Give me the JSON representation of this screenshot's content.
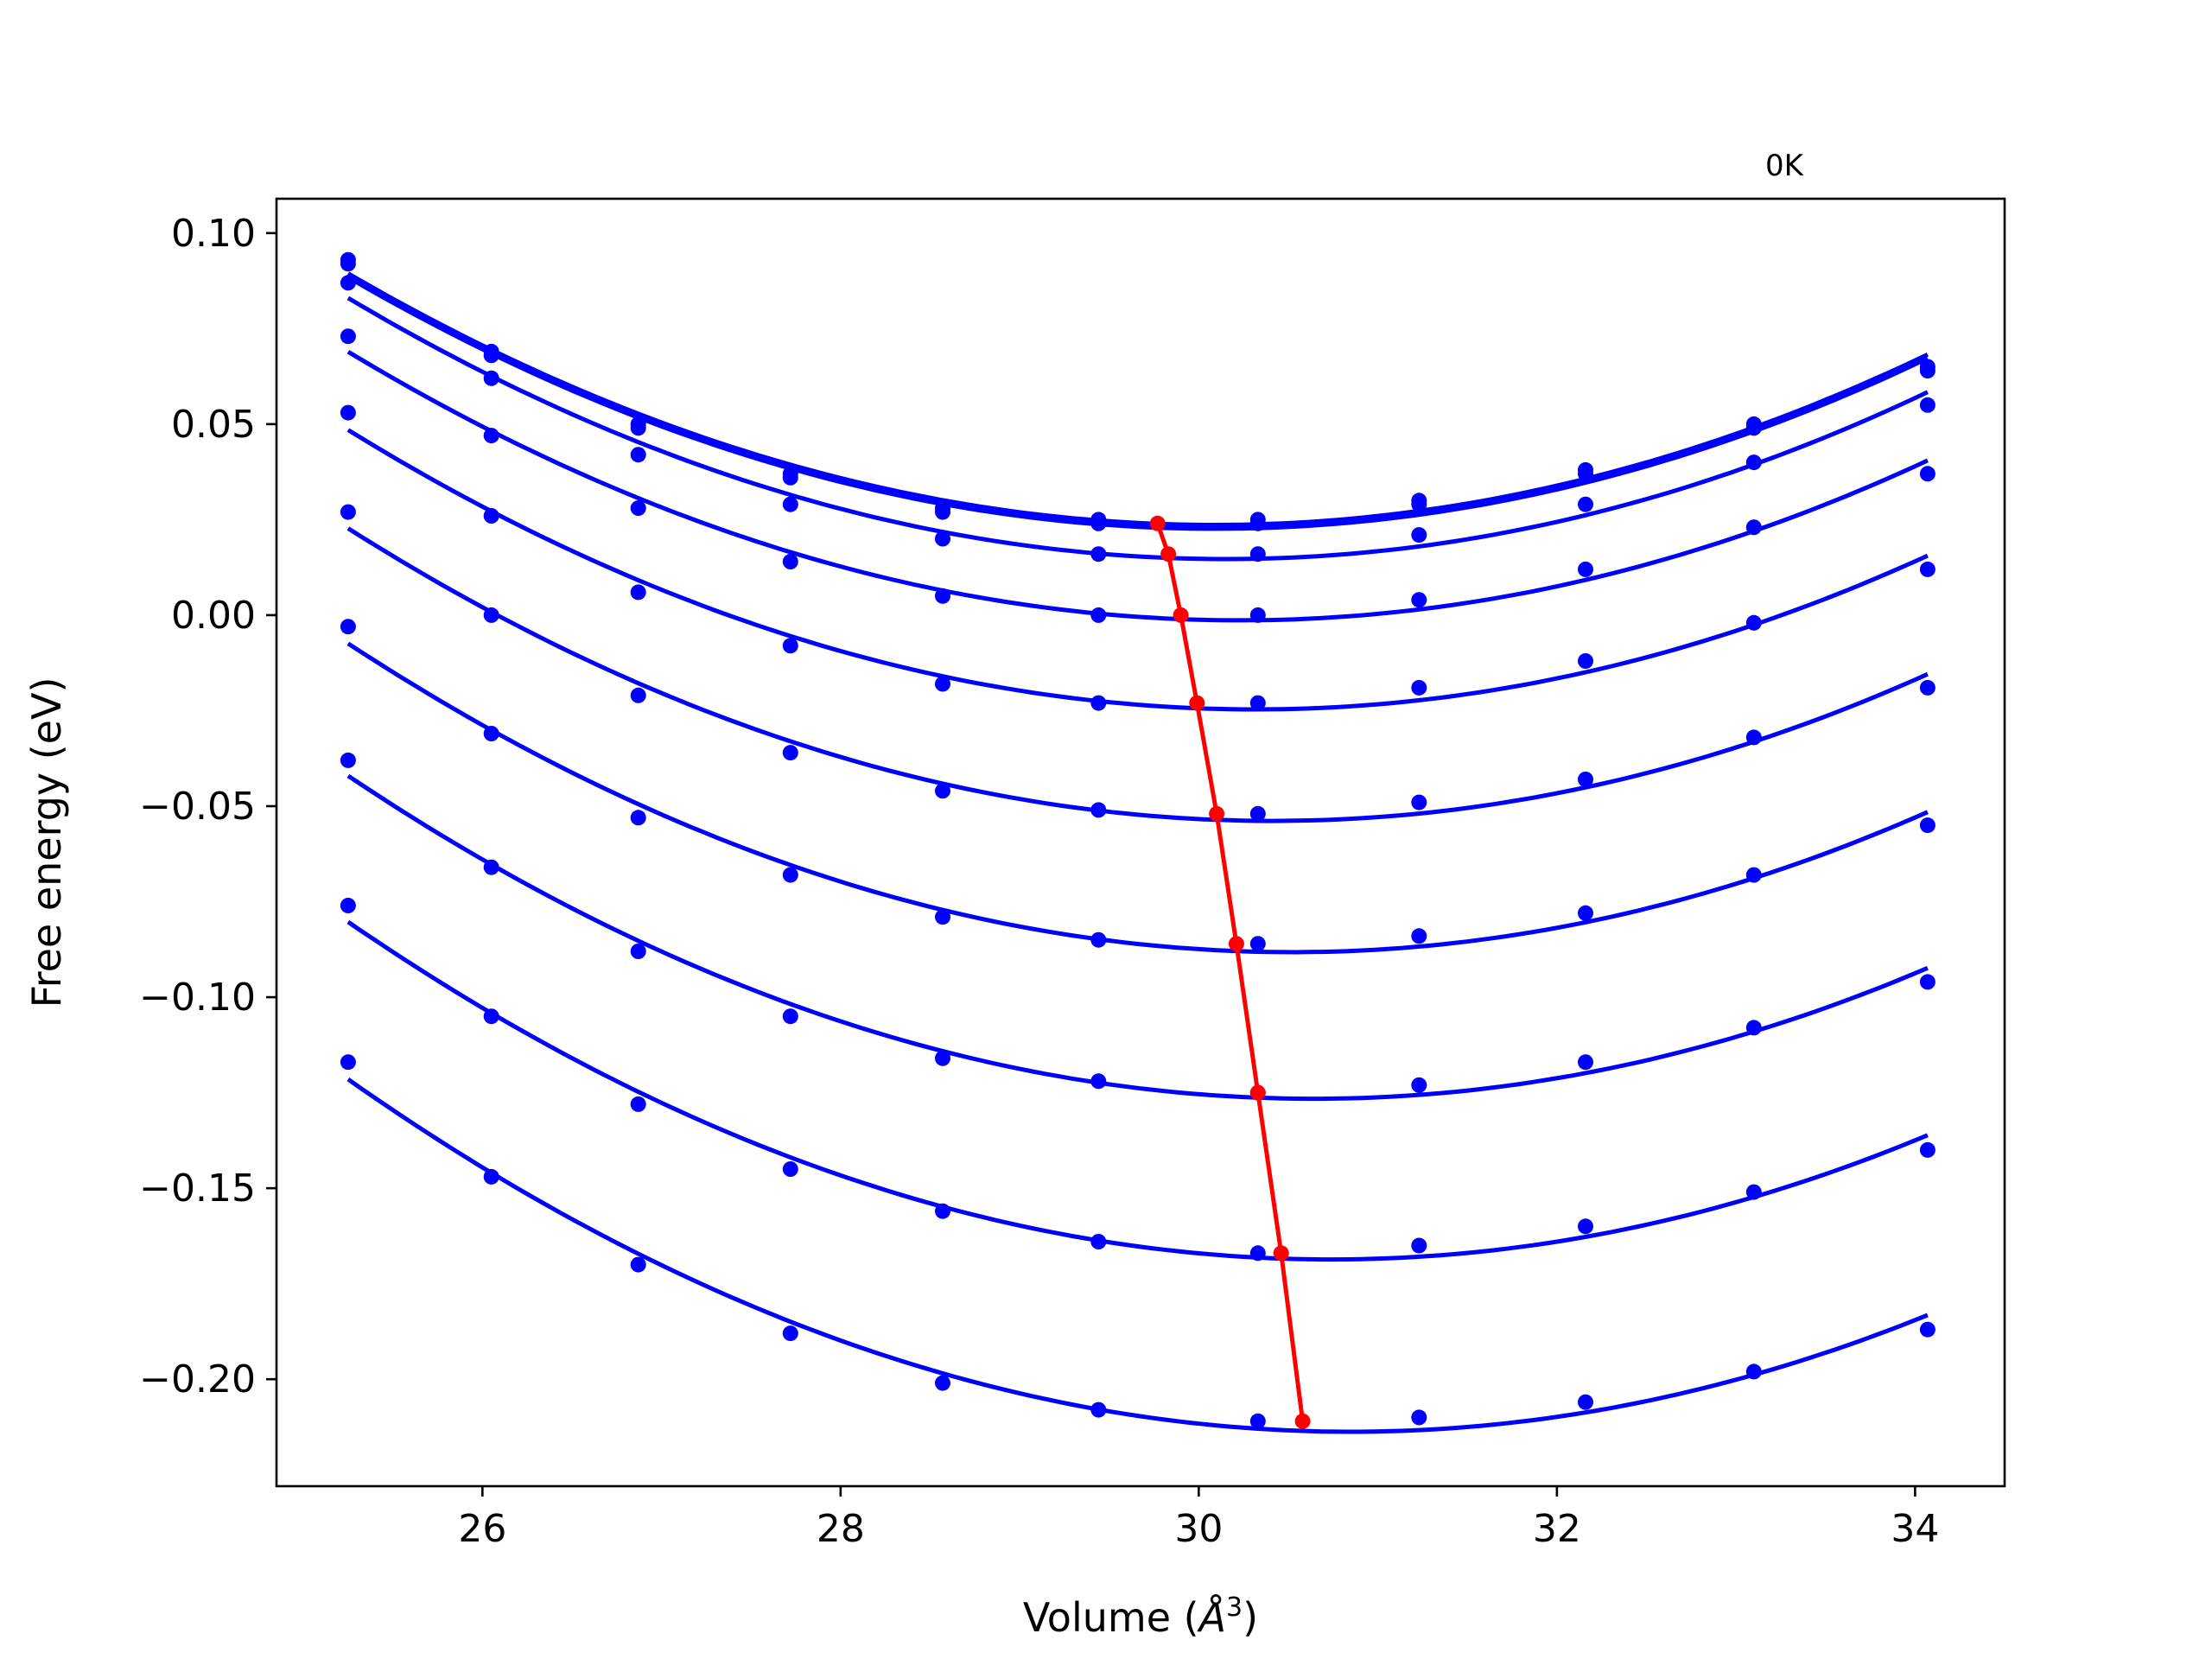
{
  "chart_data": {
    "type": "line",
    "temperature_label": "0K",
    "xlabel": "Volume (Å³)",
    "xlabel_parts": {
      "pre": "Volume (",
      "italic": "Å",
      "sup": "3",
      "post": ")"
    },
    "ylabel": "Free energy (eV)",
    "xlim": [
      24.85,
      34.5
    ],
    "ylim": [
      -0.228,
      0.109
    ],
    "x_ticks": [
      26,
      28,
      30,
      32,
      34
    ],
    "x_tick_labels": [
      "26",
      "28",
      "30",
      "32",
      "34"
    ],
    "y_ticks": [
      0.1,
      0.05,
      0.0,
      -0.05,
      -0.1,
      -0.15,
      -0.2
    ],
    "y_tick_labels": [
      "0.10",
      "0.05",
      "0.00",
      "−0.05",
      "−0.10",
      "−0.15",
      "−0.20"
    ],
    "x": [
      25.25,
      26.05,
      26.87,
      27.72,
      28.57,
      29.44,
      30.33,
      31.23,
      32.16,
      33.1,
      34.07
    ],
    "series": [
      {
        "values": [
          0.093,
          0.069,
          0.05,
          0.037,
          0.028,
          0.025,
          0.025,
          0.03,
          0.038,
          0.05,
          0.065
        ]
      },
      {
        "values": [
          0.092,
          0.068,
          0.049,
          0.036,
          0.027,
          0.024,
          0.024,
          0.029,
          0.037,
          0.049,
          0.064
        ]
      },
      {
        "values": [
          0.087,
          0.062,
          0.042,
          0.029,
          0.02,
          0.016,
          0.016,
          0.021,
          0.029,
          0.04,
          0.055
        ]
      },
      {
        "values": [
          0.073,
          0.047,
          0.028,
          0.014,
          0.005,
          0.0,
          0.0,
          0.004,
          0.012,
          0.023,
          0.037
        ]
      },
      {
        "values": [
          0.053,
          0.026,
          0.006,
          -0.008,
          -0.018,
          -0.023,
          -0.023,
          -0.019,
          -0.012,
          -0.002,
          0.012
        ]
      },
      {
        "values": [
          0.027,
          0.0,
          -0.021,
          -0.036,
          -0.046,
          -0.051,
          -0.052,
          -0.049,
          -0.043,
          -0.032,
          -0.019
        ]
      },
      {
        "values": [
          -0.003,
          -0.031,
          -0.053,
          -0.068,
          -0.079,
          -0.085,
          -0.086,
          -0.084,
          -0.078,
          -0.068,
          -0.055
        ]
      },
      {
        "values": [
          -0.038,
          -0.066,
          -0.088,
          -0.105,
          -0.116,
          -0.122,
          -0.125,
          -0.123,
          -0.117,
          -0.108,
          -0.096
        ]
      },
      {
        "values": [
          -0.076,
          -0.105,
          -0.128,
          -0.145,
          -0.156,
          -0.164,
          -0.167,
          -0.165,
          -0.16,
          -0.151,
          -0.14
        ]
      },
      {
        "values": [
          -0.117,
          -0.147,
          -0.17,
          -0.188,
          -0.201,
          -0.208,
          -0.211,
          -0.21,
          -0.206,
          -0.198,
          -0.187
        ]
      }
    ],
    "minimum_path": {
      "x": [
        29.77,
        29.83,
        29.9,
        29.99,
        30.1,
        30.21,
        30.33,
        30.46,
        30.58
      ],
      "y": [
        0.024,
        0.016,
        0.0,
        -0.023,
        -0.052,
        -0.086,
        -0.125,
        -0.167,
        -0.211
      ]
    },
    "colors": {
      "series": "#0000ff",
      "minimum_path": "#ff0000"
    },
    "grid": false,
    "legend": "none"
  }
}
